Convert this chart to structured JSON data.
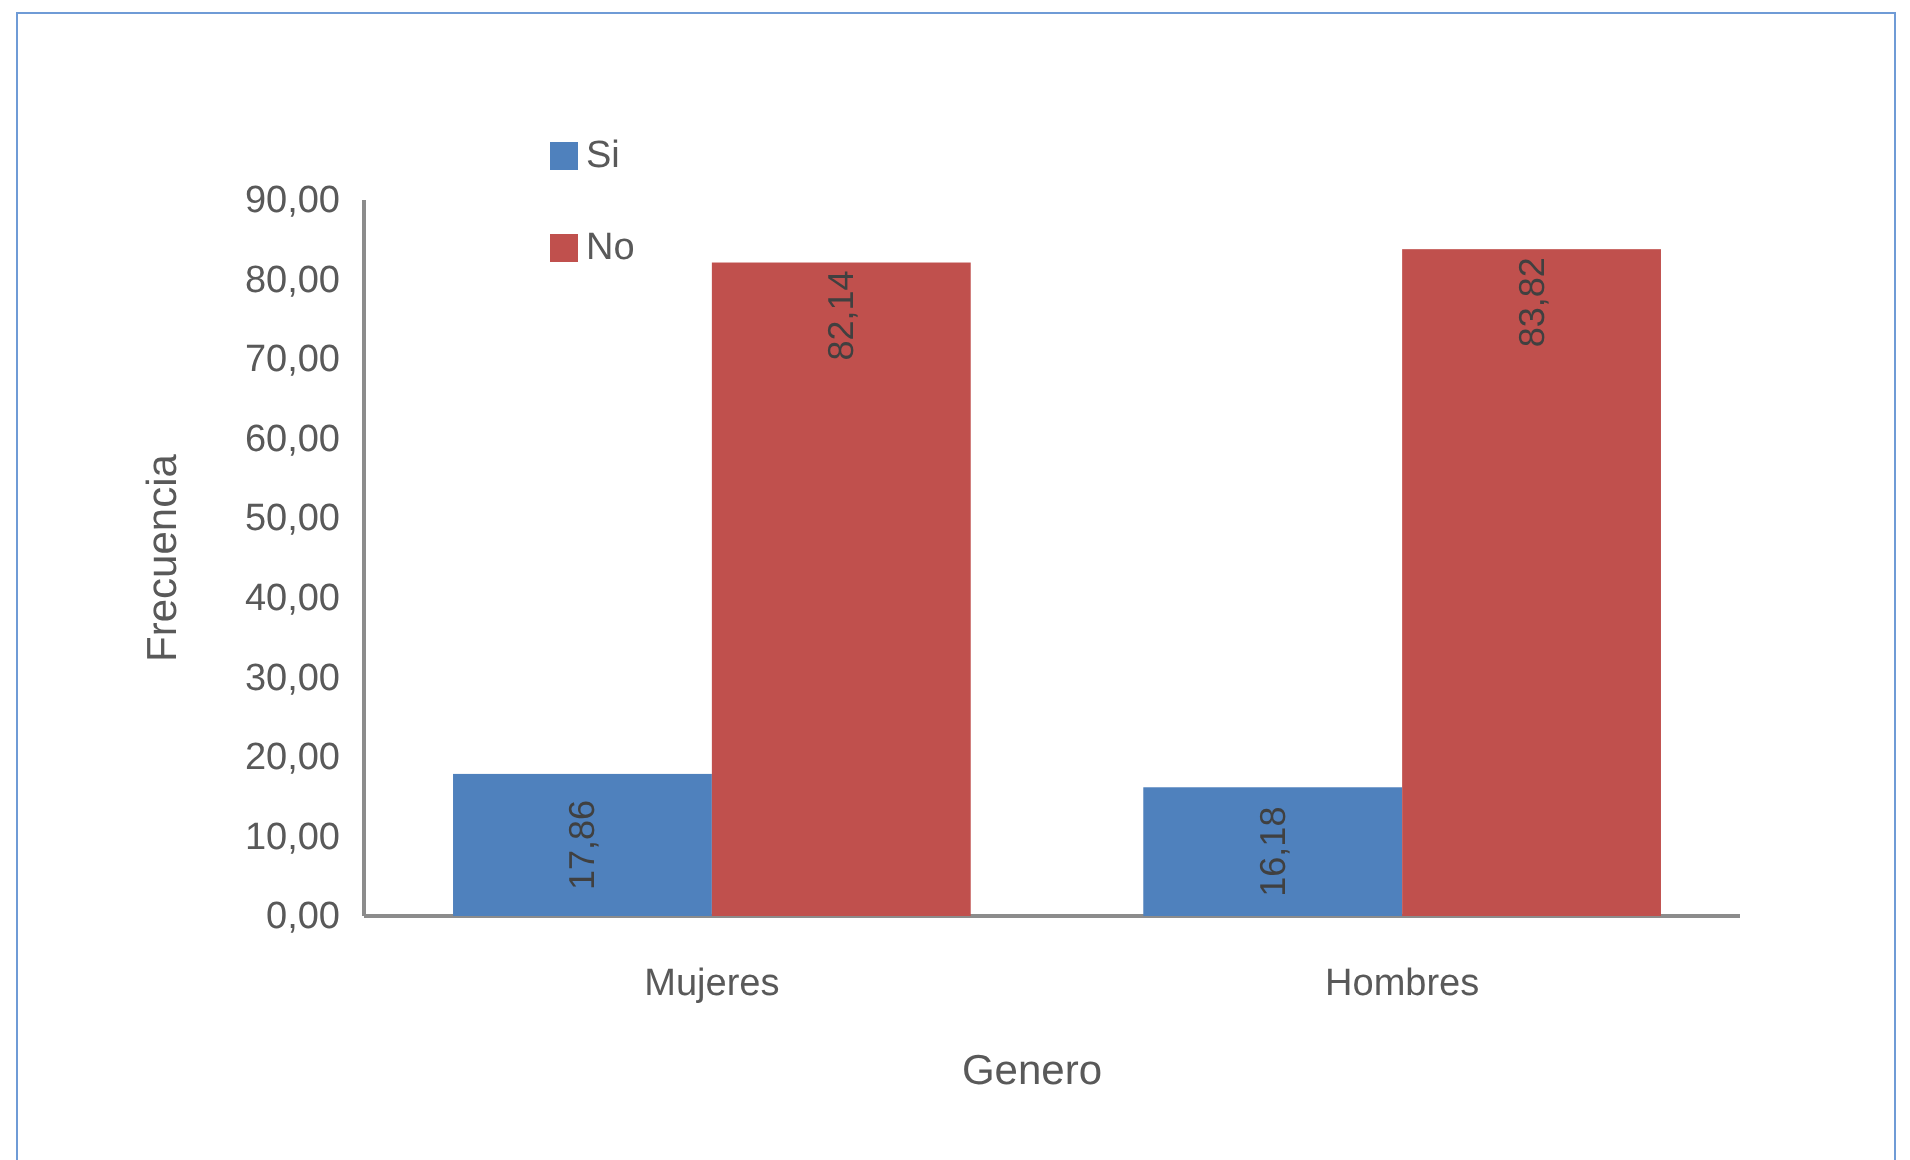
{
  "chart_data": {
    "type": "bar",
    "xlabel": "Genero",
    "ylabel": "Frecuencia",
    "categories": [
      "Mujeres",
      "Hombres"
    ],
    "series": [
      {
        "name": "Si",
        "color": "#4f81bd",
        "values": [
          17.86,
          16.18
        ],
        "value_labels": [
          "17,86",
          "16,18"
        ]
      },
      {
        "name": "No",
        "color": "#c0504d",
        "values": [
          82.14,
          83.82
        ],
        "value_labels": [
          "82,14",
          "83,82"
        ]
      }
    ],
    "ylim": [
      0,
      90
    ],
    "yticks": [
      {
        "value": 0,
        "label": "0,00"
      },
      {
        "value": 10,
        "label": "10,00"
      },
      {
        "value": 20,
        "label": "20,00"
      },
      {
        "value": 30,
        "label": "30,00"
      },
      {
        "value": 40,
        "label": "40,00"
      },
      {
        "value": 50,
        "label": "50,00"
      },
      {
        "value": 60,
        "label": "60,00"
      },
      {
        "value": 70,
        "label": "70,00"
      },
      {
        "value": 80,
        "label": "80,00"
      },
      {
        "value": 90,
        "label": "90,00"
      }
    ],
    "legend": "top left"
  }
}
